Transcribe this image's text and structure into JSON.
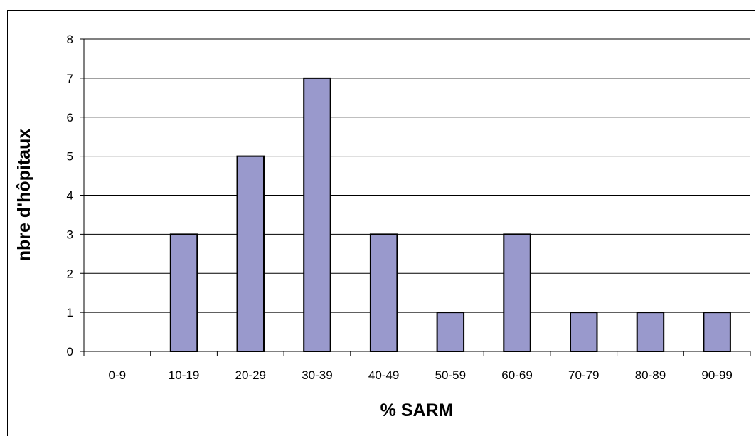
{
  "page_header_fragment": "",
  "chart_data": {
    "type": "bar",
    "categories": [
      "0-9",
      "10-19",
      "20-29",
      "30-39",
      "40-49",
      "50-59",
      "60-69",
      "70-79",
      "80-89",
      "90-99"
    ],
    "values": [
      0,
      3,
      5,
      7,
      3,
      1,
      3,
      1,
      1,
      1
    ],
    "title": "",
    "xlabel": "% SARM",
    "ylabel": "nbre d'hôpitaux",
    "ylim": [
      0,
      8
    ],
    "yticks": [
      0,
      1,
      2,
      3,
      4,
      5,
      6,
      7,
      8
    ],
    "grid": true,
    "legend": "none",
    "bar_color": "#9999cc",
    "bar_border_color": "#000000"
  }
}
